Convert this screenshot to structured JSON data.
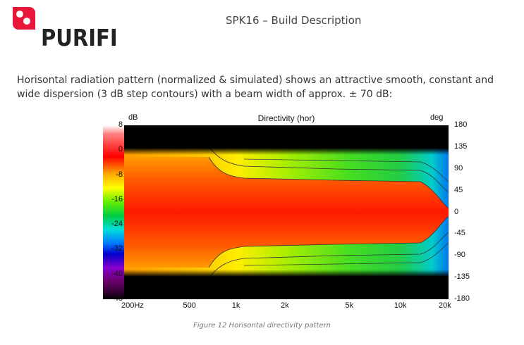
{
  "logo": {
    "wordmark": "PURIFI"
  },
  "header": {
    "title": "SPK16 – Build Description"
  },
  "description": "Horisontal radiation pattern (normalized & simulated) shows an attractive smooth, constant and wide dispersion (3 dB step contours) with a beam width of approx. ± 70 dB:",
  "figure": {
    "caption": "Figure 12 Horisontal directivity pattern"
  },
  "chart_data": {
    "type": "heatmap",
    "title": "Directivity (hor)",
    "colorbar_unit": "dB",
    "colorbar_ticks": [
      "8",
      "0",
      "-8",
      "-16",
      "-24",
      "-32",
      "-40",
      "-48"
    ],
    "y_unit": "deg",
    "y_ticks": [
      "180",
      "135",
      "90",
      "45",
      "0",
      "-45",
      "-90",
      "-135",
      "-180"
    ],
    "x_scale": "log",
    "x_ticks": [
      "200Hz",
      "500",
      "1k",
      "2k",
      "5k",
      "10k",
      "20k"
    ],
    "x_range": [
      200,
      20000
    ],
    "y_range": [
      -180,
      180
    ],
    "contour_step_db": 3
  }
}
